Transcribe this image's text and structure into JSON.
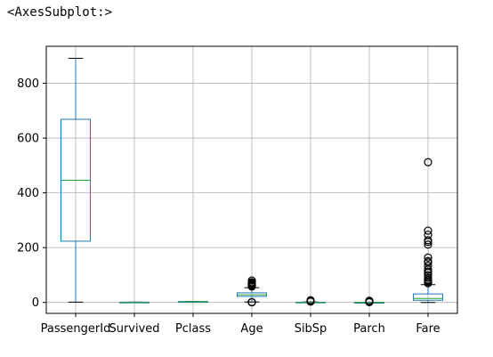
{
  "output_text": "<AxesSubplot:>",
  "colors": {
    "box": "#1f77b4",
    "median": "#2ca02c",
    "grid": "#b0b0b0",
    "axes": "#000000",
    "flier": "#000000"
  },
  "chart_data": {
    "type": "boxplot",
    "title": "",
    "xlabel": "",
    "ylabel": "",
    "ylim": [
      -40,
      935
    ],
    "yticks": [
      0,
      200,
      400,
      600,
      800
    ],
    "grid": true,
    "categories": [
      "PassengerId",
      "Survived",
      "Pclass",
      "Age",
      "SibSp",
      "Parch",
      "Fare"
    ],
    "boxes": [
      {
        "name": "PassengerId",
        "whislo": 1,
        "q1": 223.5,
        "med": 446,
        "q3": 668.5,
        "whishi": 891,
        "fliers": []
      },
      {
        "name": "Survived",
        "whislo": 0,
        "q1": 0,
        "med": 0,
        "q3": 1,
        "whishi": 1,
        "fliers": []
      },
      {
        "name": "Pclass",
        "whislo": 1,
        "q1": 2,
        "med": 3,
        "q3": 3,
        "whishi": 3,
        "fliers": []
      },
      {
        "name": "Age",
        "whislo": 2,
        "q1": 22,
        "med": 28,
        "q3": 35,
        "whishi": 54,
        "fliers": [
          0.4,
          0.9,
          1,
          58,
          60,
          62,
          64,
          66,
          70,
          71,
          74,
          80
        ]
      },
      {
        "name": "SibSp",
        "whislo": 0,
        "q1": 0,
        "med": 0,
        "q3": 1,
        "whishi": 2,
        "fliers": [
          3,
          4,
          5,
          8
        ]
      },
      {
        "name": "Parch",
        "whislo": 0,
        "q1": 0,
        "med": 0,
        "q3": 0,
        "whishi": 0,
        "fliers": [
          1,
          2,
          3,
          4,
          5,
          6
        ]
      },
      {
        "name": "Fare",
        "whislo": 0,
        "q1": 7.9,
        "med": 14.5,
        "q3": 31,
        "whishi": 65,
        "fliers": [
          70,
          75,
          80,
          83,
          90,
          100,
          108,
          113,
          120,
          134,
          146,
          151,
          164,
          211,
          221,
          227,
          247,
          262,
          512
        ]
      }
    ]
  }
}
